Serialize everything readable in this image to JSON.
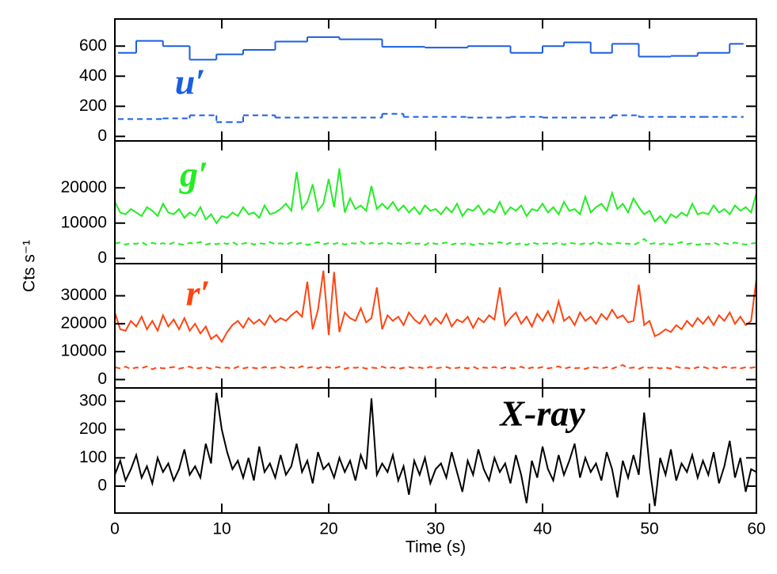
{
  "ylabel": "Cts s⁻¹",
  "chart_data": [
    {
      "type": "line",
      "label": "u′",
      "xlim": [
        0,
        60
      ],
      "ylim": [
        -30,
        780
      ],
      "yticks": [
        0,
        200,
        400,
        600
      ],
      "series": [
        {
          "color": "#1a5fe0",
          "style": "solid",
          "bins": [
            0.3,
            2,
            4.5,
            7,
            9.5,
            12,
            15,
            18,
            21,
            25,
            29,
            33,
            37,
            40,
            42,
            44.5,
            46.5,
            49,
            52,
            54.5,
            57.5,
            58.8
          ],
          "values": [
            555,
            635,
            600,
            510,
            545,
            575,
            630,
            660,
            645,
            595,
            590,
            600,
            555,
            600,
            625,
            555,
            615,
            530,
            535,
            555,
            615
          ]
        },
        {
          "color": "#1a5fe0",
          "style": "dashed",
          "bins": [
            0.3,
            4.5,
            7,
            9.5,
            10.5,
            12,
            15,
            25,
            27,
            33,
            37,
            40,
            46.5,
            49,
            52,
            55,
            58.8
          ],
          "values": [
            115,
            120,
            140,
            95,
            95,
            140,
            125,
            150,
            130,
            125,
            130,
            125,
            140,
            130,
            130,
            130
          ]
        }
      ]
    },
    {
      "type": "line",
      "label": "g′",
      "xlim": [
        0,
        60
      ],
      "ylim": [
        -1500,
        33300
      ],
      "yticks": [
        0,
        10000,
        20000
      ],
      "x": [
        0,
        0.5,
        1,
        1.5,
        2,
        2.5,
        3,
        3.5,
        4,
        4.5,
        5,
        5.5,
        6,
        6.5,
        7,
        7.5,
        8,
        8.5,
        9,
        9.5,
        10,
        10.5,
        11,
        11.5,
        12,
        12.5,
        13,
        13.5,
        14,
        14.5,
        15,
        15.5,
        16,
        16.5,
        17,
        17.5,
        18,
        18.5,
        19,
        19.5,
        20,
        20.5,
        21,
        21.5,
        22,
        22.5,
        23,
        23.5,
        24,
        24.5,
        25,
        25.5,
        26,
        26.5,
        27,
        27.5,
        28,
        28.5,
        29,
        29.5,
        30,
        30.5,
        31,
        31.5,
        32,
        32.5,
        33,
        33.5,
        34,
        34.5,
        35,
        35.5,
        36,
        36.5,
        37,
        37.5,
        38,
        38.5,
        39,
        39.5,
        40,
        40.5,
        41,
        41.5,
        42,
        42.5,
        43,
        43.5,
        44,
        44.5,
        45,
        45.5,
        46,
        46.5,
        47,
        47.5,
        48,
        48.5,
        49,
        49.5,
        50,
        50.5,
        51,
        51.5,
        52,
        52.5,
        53,
        53.5,
        54,
        54.5,
        55,
        55.5,
        56,
        56.5,
        57,
        57.5,
        58,
        58.5,
        59,
        59.5,
        60
      ],
      "series": [
        {
          "color": "#22ee22",
          "style": "solid",
          "values": [
            16000,
            13000,
            12500,
            14000,
            13000,
            12000,
            14500,
            13500,
            12000,
            15500,
            13000,
            12500,
            14000,
            11500,
            13000,
            12000,
            14500,
            11000,
            12500,
            10000,
            12000,
            11500,
            13000,
            12000,
            14500,
            12500,
            13000,
            11500,
            15000,
            12500,
            13000,
            14000,
            15500,
            13500,
            24500,
            14000,
            16000,
            21000,
            13500,
            15500,
            22500,
            14500,
            25500,
            13000,
            17000,
            14000,
            15000,
            13500,
            20500,
            14000,
            15500,
            14000,
            16000,
            13500,
            15000,
            13000,
            14500,
            12500,
            15000,
            13500,
            14000,
            12500,
            14500,
            13000,
            15500,
            12000,
            14000,
            13500,
            15000,
            12500,
            14000,
            13000,
            16000,
            12500,
            14500,
            13500,
            15000,
            12000,
            14000,
            13500,
            15500,
            13000,
            14500,
            12500,
            16000,
            13500,
            14000,
            12500,
            17500,
            13000,
            14500,
            15500,
            13500,
            18500,
            14000,
            15500,
            13000,
            17000,
            14500,
            12500,
            13500,
            10500,
            12000,
            10000,
            12500,
            11500,
            13000,
            12000,
            15500,
            12500,
            13000,
            12500,
            15000,
            13000,
            14000,
            12500,
            15000,
            13500,
            14500,
            13000,
            18500
          ]
        },
        {
          "color": "#22ee22",
          "style": "dashed",
          "values": [
            4200,
            4500,
            3900,
            4300,
            4100,
            4600,
            3800,
            4400,
            4000,
            4300,
            3900,
            4500,
            4100,
            3800,
            4400,
            4200,
            4700,
            3900,
            4300,
            4000,
            4400,
            4100,
            4600,
            3800,
            4200,
            4500,
            3900,
            4300,
            4100,
            4600,
            4000,
            4300,
            3900,
            4500,
            4100,
            4400,
            3800,
            4200,
            4600,
            4000,
            4300,
            4100,
            4500,
            3900,
            4300,
            4200,
            4700,
            3800,
            4400,
            4000,
            4300,
            4400,
            4000,
            4300,
            3900,
            4500,
            4100,
            4200,
            3800,
            4600,
            4100,
            4200,
            4500,
            3900,
            4300,
            4100,
            4400,
            3800,
            4200,
            4000,
            4300,
            4100,
            4600,
            3900,
            4400,
            4000,
            4300,
            3800,
            4500,
            4100,
            4200,
            4300,
            4100,
            4500,
            3900,
            4400,
            4200,
            4000,
            4300,
            4100,
            4800,
            4000,
            4300,
            3900,
            4400,
            4100,
            4200,
            3800,
            4500,
            5500,
            4100,
            4300,
            4000,
            4400,
            3900,
            4200,
            4600,
            4000,
            4300,
            3800,
            4200,
            4100,
            4400,
            3900,
            4300,
            4000,
            4500,
            4100,
            3900,
            4200,
            4400
          ]
        }
      ]
    },
    {
      "type": "line",
      "label": "r′",
      "xlim": [
        0,
        60
      ],
      "ylim": [
        -3000,
        41500
      ],
      "yticks": [
        0,
        10000,
        20000,
        30000
      ],
      "x": [
        0,
        0.5,
        1,
        1.5,
        2,
        2.5,
        3,
        3.5,
        4,
        4.5,
        5,
        5.5,
        6,
        6.5,
        7,
        7.5,
        8,
        8.5,
        9,
        9.5,
        10,
        10.5,
        11,
        11.5,
        12,
        12.5,
        13,
        13.5,
        14,
        14.5,
        15,
        15.5,
        16,
        16.5,
        17,
        17.5,
        18,
        18.5,
        19,
        19.5,
        20,
        20.5,
        21,
        21.5,
        22,
        22.5,
        23,
        23.5,
        24,
        24.5,
        25,
        25.5,
        26,
        26.5,
        27,
        27.5,
        28,
        28.5,
        29,
        29.5,
        30,
        30.5,
        31,
        31.5,
        32,
        32.5,
        33,
        33.5,
        34,
        34.5,
        35,
        35.5,
        36,
        36.5,
        37,
        37.5,
        38,
        38.5,
        39,
        39.5,
        40,
        40.5,
        41,
        41.5,
        42,
        42.5,
        43,
        43.5,
        44,
        44.5,
        45,
        45.5,
        46,
        46.5,
        47,
        47.5,
        48,
        48.5,
        49,
        49.5,
        50,
        50.5,
        51,
        51.5,
        52,
        52.5,
        53,
        53.5,
        54,
        54.5,
        55,
        55.5,
        56,
        56.5,
        57,
        57.5,
        58,
        58.5,
        59,
        59.5,
        60
      ],
      "series": [
        {
          "color": "#ff4411",
          "style": "solid",
          "values": [
            24000,
            18000,
            17500,
            21000,
            19000,
            22500,
            18000,
            21000,
            17500,
            23000,
            19000,
            21500,
            18000,
            22000,
            17500,
            20000,
            16500,
            19000,
            14500,
            16000,
            13500,
            17000,
            19500,
            21000,
            18500,
            22000,
            20000,
            21500,
            19500,
            23000,
            20500,
            22000,
            21000,
            23000,
            24500,
            22500,
            35000,
            18000,
            25000,
            39000,
            16000,
            38500,
            17000,
            24000,
            22000,
            21000,
            25500,
            20500,
            22000,
            33000,
            18000,
            23000,
            21000,
            22500,
            19500,
            24000,
            21500,
            20000,
            23000,
            19500,
            22000,
            20000,
            23500,
            19000,
            21500,
            20500,
            22500,
            18500,
            22000,
            20500,
            23000,
            21500,
            33000,
            19500,
            22000,
            24000,
            20000,
            22500,
            19000,
            23500,
            21000,
            24500,
            20500,
            28000,
            21000,
            22500,
            19500,
            24000,
            21000,
            22500,
            20000,
            23500,
            21500,
            25000,
            22000,
            23000,
            20500,
            21000,
            34000,
            19500,
            21000,
            15500,
            16500,
            18000,
            17000,
            19500,
            18000,
            21000,
            19000,
            22000,
            20000,
            22500,
            19500,
            23000,
            21000,
            24000,
            20000,
            22500,
            19500,
            21000,
            36000
          ]
        },
        {
          "color": "#ff4411",
          "style": "dashed",
          "values": [
            4400,
            4000,
            4600,
            3800,
            4300,
            4100,
            4700,
            3700,
            4400,
            4000,
            4200,
            4500,
            3900,
            4300,
            4600,
            3800,
            4200,
            4400,
            3900,
            4500,
            4100,
            4300,
            3800,
            4600,
            4000,
            4400,
            4200,
            3900,
            4500,
            4100,
            4300,
            4600,
            4000,
            4400,
            3900,
            4800,
            4200,
            4500,
            4000,
            4700,
            4300,
            4100,
            4600,
            3800,
            4400,
            4200,
            4500,
            3900,
            4300,
            4100,
            4600,
            4000,
            4400,
            3800,
            4200,
            4500,
            4100,
            4300,
            3900,
            4600,
            4000,
            4300,
            4500,
            3900,
            4200,
            4400,
            4000,
            4600,
            3800,
            4300,
            4100,
            4500,
            3900,
            4400,
            4200,
            4000,
            4600,
            3800,
            4300,
            4100,
            4500,
            4000,
            4300,
            4700,
            3900,
            4400,
            4100,
            4200,
            3800,
            4500,
            4300,
            4000,
            4400,
            3900,
            4600,
            5200,
            4100,
            4300,
            3800,
            4500,
            4200,
            4400,
            4000,
            4300,
            3900,
            4600,
            4100,
            4200,
            3800,
            4400,
            4500,
            4000,
            4300,
            3900,
            4600,
            4100,
            4300,
            4000,
            4400,
            4200,
            4500
          ]
        }
      ]
    },
    {
      "type": "line",
      "label": "X-ray",
      "xlabel": "Time (s)",
      "xlim": [
        0,
        60
      ],
      "xticks": [
        0,
        10,
        20,
        30,
        40,
        50,
        60
      ],
      "ylim": [
        -95,
        347
      ],
      "yticks": [
        0,
        100,
        200,
        300
      ],
      "x": [
        0,
        0.5,
        1,
        1.5,
        2,
        2.5,
        3,
        3.5,
        4,
        4.5,
        5,
        5.5,
        6,
        6.5,
        7,
        7.5,
        8,
        8.5,
        9,
        9.5,
        10,
        10.5,
        11,
        11.5,
        12,
        12.5,
        13,
        13.5,
        14,
        14.5,
        15,
        15.5,
        16,
        16.5,
        17,
        17.5,
        18,
        18.5,
        19,
        19.5,
        20,
        20.5,
        21,
        21.5,
        22,
        22.5,
        23,
        23.5,
        24,
        24.5,
        25,
        25.5,
        26,
        26.5,
        27,
        27.5,
        28,
        28.5,
        29,
        29.5,
        30,
        30.5,
        31,
        31.5,
        32,
        32.5,
        33,
        33.5,
        34,
        34.5,
        35,
        35.5,
        36,
        36.5,
        37,
        37.5,
        38,
        38.5,
        39,
        39.5,
        40,
        40.5,
        41,
        41.5,
        42,
        42.5,
        43,
        43.5,
        44,
        44.5,
        45,
        45.5,
        46,
        46.5,
        47,
        47.5,
        48,
        48.5,
        49,
        49.5,
        50,
        50.5,
        51,
        51.5,
        52,
        52.5,
        53,
        53.5,
        54,
        54.5,
        55,
        55.5,
        56,
        56.5,
        57,
        57.5,
        58,
        58.5,
        59,
        59.5,
        60
      ],
      "series": [
        {
          "color": "#000000",
          "style": "solid",
          "values": [
            40,
            90,
            20,
            60,
            110,
            30,
            70,
            10,
            100,
            50,
            80,
            20,
            60,
            130,
            40,
            70,
            30,
            150,
            80,
            330,
            200,
            120,
            60,
            90,
            30,
            100,
            20,
            140,
            50,
            80,
            30,
            110,
            40,
            70,
            150,
            50,
            90,
            10,
            120,
            60,
            80,
            30,
            100,
            50,
            90,
            20,
            110,
            60,
            310,
            40,
            80,
            50,
            110,
            20,
            70,
            -30,
            90,
            40,
            100,
            10,
            60,
            80,
            30,
            120,
            50,
            -20,
            90,
            40,
            130,
            60,
            20,
            100,
            50,
            80,
            10,
            110,
            40,
            -60,
            90,
            30,
            140,
            60,
            20,
            110,
            40,
            90,
            150,
            30,
            100,
            50,
            80,
            20,
            120,
            60,
            -40,
            90,
            30,
            110,
            40,
            260,
            70,
            -70,
            100,
            40,
            130,
            20,
            80,
            50,
            110,
            30,
            90,
            40,
            120,
            10,
            70,
            160,
            30,
            100,
            -20,
            60,
            50
          ]
        }
      ]
    }
  ]
}
